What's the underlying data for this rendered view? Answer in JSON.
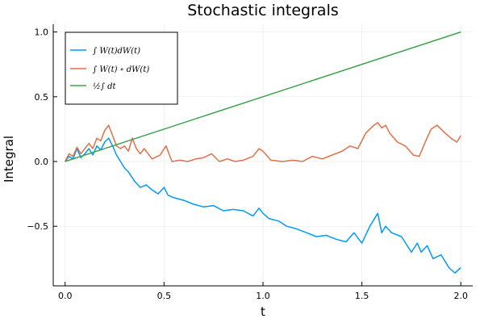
{
  "chart_data": {
    "type": "line",
    "title": "Stochastic integrals",
    "xlabel": "t",
    "ylabel": "Integral",
    "xlim": [
      -0.06,
      2.06
    ],
    "ylim": [
      -0.96,
      1.06
    ],
    "grid": true,
    "legend_position": "top-left",
    "x_ticks": [
      {
        "value": 0.0,
        "label": "0.0"
      },
      {
        "value": 0.5,
        "label": "0.5"
      },
      {
        "value": 1.0,
        "label": "1.0"
      },
      {
        "value": 1.5,
        "label": "1.5"
      },
      {
        "value": 2.0,
        "label": "2.0"
      }
    ],
    "y_ticks": [
      {
        "value": -0.5,
        "label": "−0.5"
      },
      {
        "value": 0.0,
        "label": "0.0"
      },
      {
        "value": 0.5,
        "label": "0.5"
      },
      {
        "value": 1.0,
        "label": "1.0"
      }
    ],
    "series": [
      {
        "name": "∫ W(t)dW(t)",
        "color": "#009AFA",
        "x": [
          0,
          0.02,
          0.04,
          0.06,
          0.08,
          0.1,
          0.12,
          0.14,
          0.16,
          0.18,
          0.2,
          0.22,
          0.24,
          0.26,
          0.28,
          0.3,
          0.32,
          0.35,
          0.38,
          0.41,
          0.44,
          0.47,
          0.5,
          0.52,
          0.55,
          0.6,
          0.65,
          0.7,
          0.75,
          0.8,
          0.85,
          0.9,
          0.95,
          0.98,
          1.0,
          1.03,
          1.08,
          1.12,
          1.17,
          1.22,
          1.27,
          1.32,
          1.37,
          1.42,
          1.46,
          1.5,
          1.54,
          1.56,
          1.58,
          1.6,
          1.62,
          1.65,
          1.7,
          1.75,
          1.78,
          1.8,
          1.83,
          1.86,
          1.9,
          1.94,
          1.97,
          2.0
        ],
        "y": [
          0.0,
          0.04,
          0.02,
          0.1,
          0.03,
          0.06,
          0.1,
          0.05,
          0.12,
          0.09,
          0.15,
          0.18,
          0.12,
          0.05,
          0.0,
          -0.05,
          -0.08,
          -0.15,
          -0.2,
          -0.18,
          -0.22,
          -0.25,
          -0.2,
          -0.26,
          -0.28,
          -0.3,
          -0.33,
          -0.35,
          -0.34,
          -0.38,
          -0.37,
          -0.38,
          -0.42,
          -0.36,
          -0.4,
          -0.44,
          -0.46,
          -0.5,
          -0.52,
          -0.55,
          -0.58,
          -0.57,
          -0.6,
          -0.62,
          -0.55,
          -0.63,
          -0.5,
          -0.45,
          -0.4,
          -0.55,
          -0.5,
          -0.55,
          -0.58,
          -0.7,
          -0.63,
          -0.7,
          -0.65,
          -0.75,
          -0.72,
          -0.82,
          -0.86,
          -0.82
        ]
      },
      {
        "name": "∫ W(t)∘dW(t)",
        "color": "#E26F46",
        "x": [
          0,
          0.02,
          0.04,
          0.06,
          0.08,
          0.1,
          0.12,
          0.14,
          0.16,
          0.18,
          0.2,
          0.22,
          0.24,
          0.26,
          0.28,
          0.3,
          0.32,
          0.34,
          0.36,
          0.38,
          0.4,
          0.44,
          0.48,
          0.51,
          0.54,
          0.58,
          0.62,
          0.66,
          0.7,
          0.74,
          0.78,
          0.82,
          0.86,
          0.9,
          0.95,
          0.98,
          1.0,
          1.04,
          1.1,
          1.15,
          1.2,
          1.25,
          1.3,
          1.35,
          1.4,
          1.44,
          1.48,
          1.52,
          1.56,
          1.58,
          1.6,
          1.62,
          1.64,
          1.68,
          1.72,
          1.76,
          1.79,
          1.82,
          1.85,
          1.88,
          1.92,
          1.95,
          1.98,
          2.0
        ],
        "y": [
          0.0,
          0.06,
          0.04,
          0.11,
          0.06,
          0.1,
          0.14,
          0.1,
          0.18,
          0.16,
          0.24,
          0.28,
          0.2,
          0.12,
          0.1,
          0.12,
          0.08,
          0.18,
          0.1,
          0.06,
          0.1,
          0.02,
          0.05,
          0.12,
          0.0,
          0.01,
          0.0,
          0.02,
          0.03,
          0.06,
          0.0,
          0.02,
          0.0,
          0.01,
          0.04,
          0.1,
          0.08,
          0.01,
          0.0,
          0.01,
          0.0,
          0.04,
          0.02,
          0.05,
          0.08,
          0.12,
          0.1,
          0.22,
          0.28,
          0.3,
          0.26,
          0.28,
          0.22,
          0.15,
          0.12,
          0.05,
          0.04,
          0.15,
          0.25,
          0.28,
          0.22,
          0.18,
          0.15,
          0.2
        ]
      },
      {
        "name": "½∫ dt",
        "color": "#3DA44D",
        "x": [
          0,
          2.0
        ],
        "y": [
          0.0,
          1.0
        ]
      }
    ],
    "legend": [
      {
        "label": "∫  W(t)dW(t)",
        "color": "#009AFA"
      },
      {
        "label": "∫  W(t) ∘ dW(t)",
        "color": "#E26F46"
      },
      {
        "label": "½∫  dt",
        "color": "#3DA44D"
      }
    ]
  }
}
